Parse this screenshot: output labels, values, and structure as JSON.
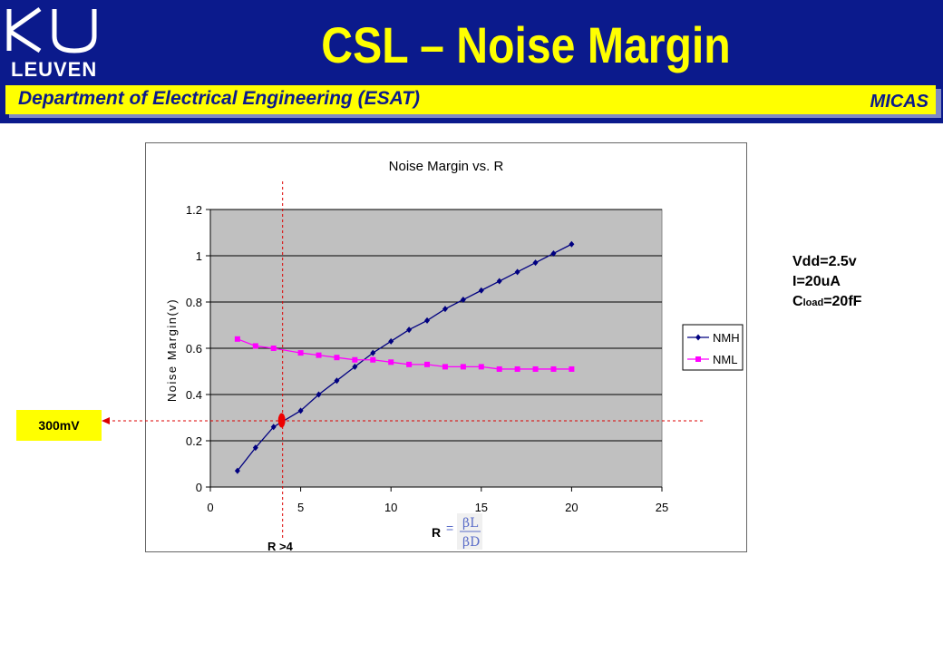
{
  "header": {
    "logo_text": "LEUVEN",
    "logo_monogram": "KU",
    "title": "CSL – Noise Margin",
    "department": "Department of Electrical Engineering (ESAT)",
    "group": "MICAS"
  },
  "colors": {
    "header_bg": "#0b1a8c",
    "title": "#ffff00",
    "band": "#ffff00",
    "plot_area": "#c0c0c0",
    "nmh": "#000080",
    "nml": "#ff00ff",
    "guide": "#dd0000"
  },
  "chart_data": {
    "type": "line",
    "title": "Noise Margin vs. R",
    "xlabel": "",
    "ylabel": "Noise Margin(v)",
    "xlim": [
      0,
      25
    ],
    "ylim": [
      0,
      1.2
    ],
    "xticks": [
      "0",
      "5",
      "10",
      "15",
      "20",
      "25"
    ],
    "yticks": [
      "0",
      "0.2",
      "0.4",
      "0.6",
      "0.8",
      "1",
      "1.2"
    ],
    "grid": "horizontal",
    "legend": "right",
    "x": [
      1.5,
      2.5,
      3.5,
      5,
      6,
      7,
      8,
      9,
      10,
      11,
      12,
      13,
      14,
      15,
      16,
      17,
      18,
      19,
      20
    ],
    "series": [
      {
        "name": "NMH",
        "marker": "diamond",
        "color": "#000080",
        "values": [
          0.07,
          0.17,
          0.26,
          0.33,
          0.4,
          0.46,
          0.52,
          0.58,
          0.63,
          0.68,
          0.72,
          0.77,
          0.81,
          0.85,
          0.89,
          0.93,
          0.97,
          1.01,
          1.05
        ]
      },
      {
        "name": "NML",
        "marker": "square",
        "color": "#ff00ff",
        "values": [
          0.64,
          0.61,
          0.6,
          0.58,
          0.57,
          0.56,
          0.55,
          0.55,
          0.54,
          0.53,
          0.53,
          0.52,
          0.52,
          0.52,
          0.51,
          0.51,
          0.51,
          0.51,
          0.51
        ]
      }
    ],
    "annotations": {
      "crossing_marker": {
        "x": 4,
        "y": 0.3
      },
      "vertical_guide_x": 4,
      "horizontal_guide_y": 0.29,
      "r_label": "R >4",
      "formula_lhs": "R =",
      "formula_numerator": "βL",
      "formula_denominator": "βD"
    }
  },
  "callout": {
    "label": "300mV"
  },
  "params": {
    "vdd": "Vdd=2.5v",
    "current": "I=20uA",
    "cload_prefix": "C",
    "cload_sub": "load",
    "cload_value": "=20fF"
  }
}
